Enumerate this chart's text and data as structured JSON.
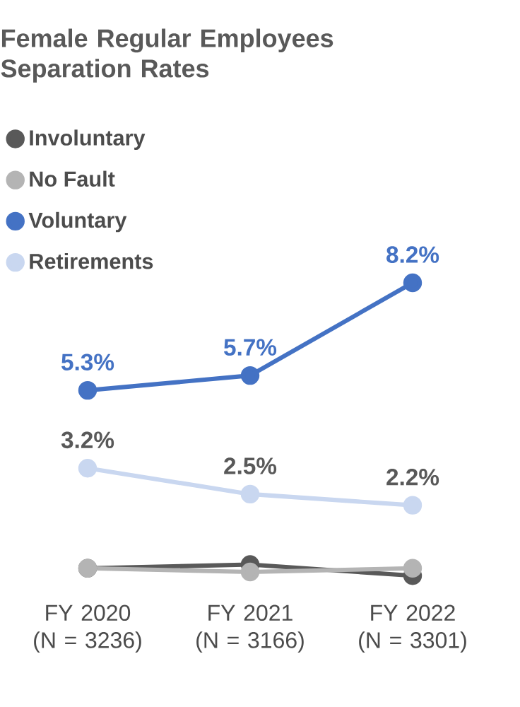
{
  "chart_data": {
    "type": "line",
    "title": "Female Regular Employees Separation Rates",
    "categories": [
      "FY 2020 (N = 3236)",
      "FY 2021 (N = 3166)",
      "FY 2022 (N = 3301)"
    ],
    "series": [
      {
        "name": "Involuntary",
        "color": "#595959",
        "values": [
          0.5,
          0.6,
          0.3
        ]
      },
      {
        "name": "No Fault",
        "color": "#b4b4b4",
        "values": [
          0.5,
          0.4,
          0.5
        ]
      },
      {
        "name": "Voluntary",
        "color": "#4472c4",
        "values": [
          5.3,
          5.7,
          8.2
        ],
        "value_labels": [
          "5.3%",
          "5.7%",
          "8.2%"
        ]
      },
      {
        "name": "Retirements",
        "color": "#c9d7f0",
        "values": [
          3.2,
          2.5,
          2.2
        ],
        "value_labels": [
          "3.2%",
          "2.5%",
          "2.2%"
        ]
      }
    ],
    "marker": "circle",
    "line_style": "solid",
    "legend": "top left"
  }
}
